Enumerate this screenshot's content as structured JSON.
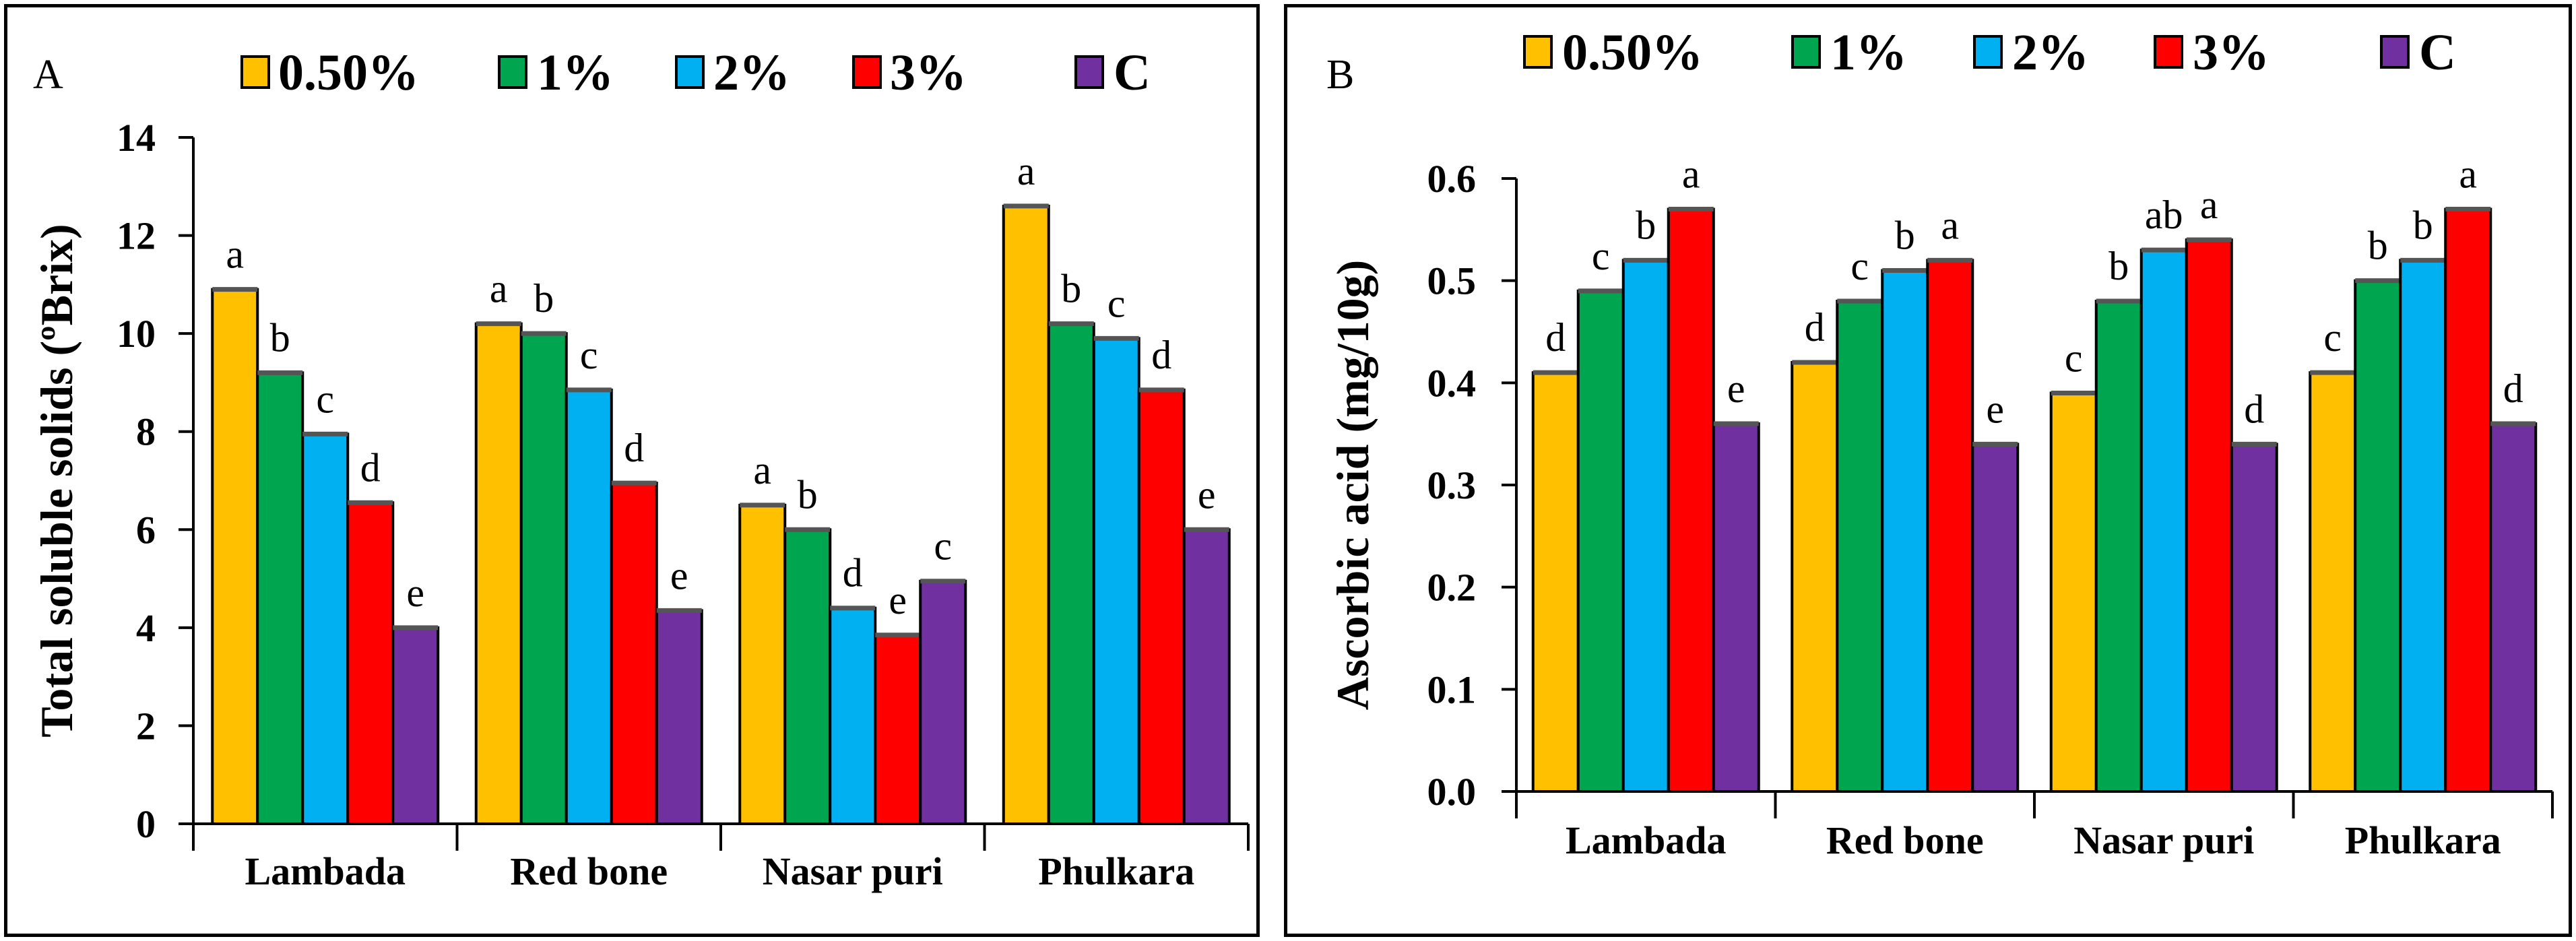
{
  "chart_data": [
    {
      "panel_label": "A",
      "type": "bar",
      "title": "",
      "xlabel": "",
      "ylabel": "Total soluble solids (ºBrix)",
      "ylim": [
        0,
        14
      ],
      "yticks": [
        "0",
        "2",
        "4",
        "6",
        "8",
        "10",
        "12",
        "14"
      ],
      "tick_values": [
        0,
        2,
        4,
        6,
        8,
        10,
        12,
        14
      ],
      "categories": [
        "Lambada",
        "Red bone",
        "Nasar puri",
        "Phulkara"
      ],
      "legend_position": "top",
      "series": [
        {
          "name": "0.50%",
          "color": "#FFC000",
          "values": [
            10.9,
            10.2,
            6.5,
            12.6
          ],
          "labels": [
            "a",
            "a",
            "a",
            "a"
          ]
        },
        {
          "name": "1%",
          "color": "#00A550",
          "values": [
            9.2,
            10.0,
            6.0,
            10.2
          ],
          "labels": [
            "b",
            "b",
            "b",
            "b"
          ]
        },
        {
          "name": "2%",
          "color": "#00B0F0",
          "values": [
            7.95,
            8.85,
            4.4,
            9.9
          ],
          "labels": [
            "c",
            "c",
            "d",
            "c"
          ]
        },
        {
          "name": "3%",
          "color": "#FF0000",
          "values": [
            6.55,
            6.95,
            3.85,
            8.85
          ],
          "labels": [
            "d",
            "d",
            "e",
            "d"
          ]
        },
        {
          "name": "C",
          "color": "#7030A0",
          "values": [
            4.0,
            4.35,
            4.95,
            6.0
          ],
          "labels": [
            "e",
            "e",
            "c",
            "e"
          ]
        }
      ]
    },
    {
      "panel_label": "B",
      "type": "bar",
      "title": "",
      "xlabel": "",
      "ylabel": "Ascorbic acid (mg/10g)",
      "ylim": [
        0,
        0.6
      ],
      "yticks": [
        "0.0",
        "0.1",
        "0.2",
        "0.3",
        "0.4",
        "0.5",
        "0.6"
      ],
      "tick_values": [
        0,
        0.1,
        0.2,
        0.3,
        0.4,
        0.5,
        0.6
      ],
      "categories": [
        "Lambada",
        "Red bone",
        "Nasar puri",
        "Phulkara"
      ],
      "legend_position": "top",
      "series": [
        {
          "name": "0.50%",
          "color": "#FFC000",
          "values": [
            0.41,
            0.42,
            0.39,
            0.41
          ],
          "labels": [
            "d",
            "d",
            "c",
            "c"
          ]
        },
        {
          "name": "1%",
          "color": "#00A550",
          "values": [
            0.49,
            0.48,
            0.48,
            0.5
          ],
          "labels": [
            "c",
            "c",
            "b",
            "b"
          ]
        },
        {
          "name": "2%",
          "color": "#00B0F0",
          "values": [
            0.52,
            0.51,
            0.53,
            0.52
          ],
          "labels": [
            "b",
            "b",
            "ab",
            "b"
          ]
        },
        {
          "name": "3%",
          "color": "#FF0000",
          "values": [
            0.57,
            0.52,
            0.54,
            0.57
          ],
          "labels": [
            "a",
            "a",
            "a",
            "a"
          ]
        },
        {
          "name": "C",
          "color": "#7030A0",
          "values": [
            0.36,
            0.34,
            0.34,
            0.36
          ],
          "labels": [
            "e",
            "e",
            "d",
            "d"
          ]
        }
      ]
    }
  ]
}
